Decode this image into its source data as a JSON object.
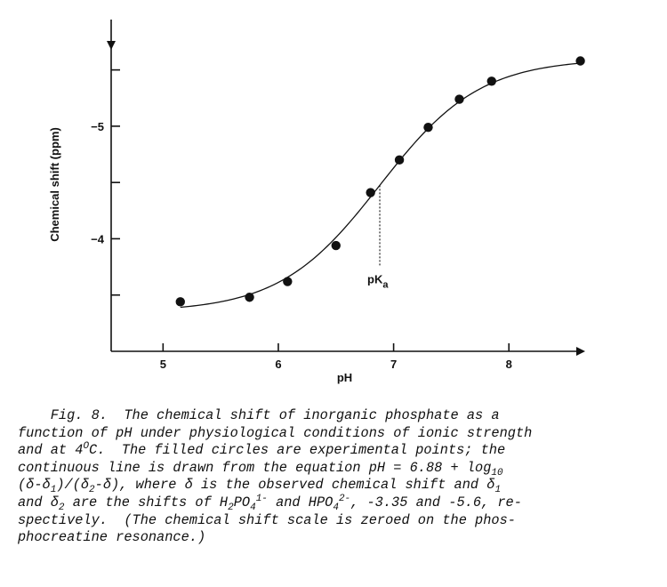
{
  "chart_data": {
    "type": "scatter",
    "xlabel": "pH",
    "ylabel": "Chemical shift (ppm)",
    "xlim": [
      4.55,
      8.6
    ],
    "ylim": [
      -3.0,
      -5.9
    ],
    "y_axis_inverted": true,
    "grid": false,
    "legend": "none",
    "x_ticks": [
      5,
      6,
      7,
      8
    ],
    "x_tick_labels": [
      "5",
      "6",
      "7",
      "8"
    ],
    "y_ticks": [
      -3.5,
      -4.0,
      -4.5,
      -5.0,
      -5.5
    ],
    "y_tick_labels": [
      "",
      "−4",
      "",
      "−5",
      ""
    ],
    "series": [
      {
        "kind": "points",
        "x": [
          5.15,
          5.75,
          6.08,
          6.5,
          6.8,
          7.05,
          7.3,
          7.57,
          7.85,
          8.62
        ],
        "y": [
          -3.44,
          -3.48,
          -3.62,
          -3.94,
          -4.41,
          -4.7,
          -4.99,
          -5.24,
          -5.4,
          -5.58
        ]
      },
      {
        "kind": "fit-curve",
        "equation": "pH = 6.88 + log10 (δ-δ1)/(δ2-δ)",
        "pKa": 6.88,
        "delta1": -3.35,
        "delta2": -5.6,
        "x_range": [
          5.15,
          8.62
        ]
      }
    ],
    "annotations": [
      {
        "text": "pK",
        "subscript": "a",
        "x": 6.88,
        "marker": "dotted-vertical-line"
      }
    ]
  },
  "caption": {
    "line1": "    Fig. 8.  The chemical shift of inorganic phosphate as a",
    "line2": "function of pH under physiological conditions of ionic strength",
    "line3_a": "and at 4",
    "line3_sup": "O",
    "line3_b": "C.  The filled circles are experimental points; the",
    "line4_a": "continuous line is drawn from the equation pH = 6.88 + log",
    "line4_sub": "10",
    "line5_a": "(δ-δ",
    "line5_sub1": "1",
    "line5_b": ")/(δ",
    "line5_sub2": "2",
    "line5_c": "-δ), where δ is the observed chemical shift and δ",
    "line5_sub3": "1",
    "line6_a": "and δ",
    "line6_sub1": "2",
    "line6_b": " are the shifts of H",
    "line6_sub2": "2",
    "line6_c": "PO",
    "line6_sub3": "4",
    "line6_sup3": "1-",
    "line6_d": " and HPO",
    "line6_sub4": "4",
    "line6_sup4": "2-",
    "line6_e": ", -3.35 and -5.6, re-",
    "line7": "spectively.  (The chemical shift scale is zeroed on the phos-",
    "line8": "phocreatine resonance.)"
  }
}
